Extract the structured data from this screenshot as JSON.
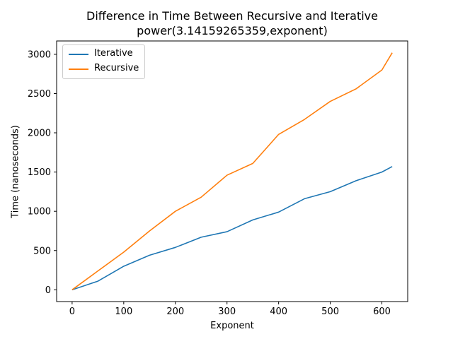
{
  "chart_data": {
    "type": "line",
    "title_lines": [
      "Difference in Time Between Recursive and Iterative",
      "power(3.14159265359,exponent)"
    ],
    "xlabel": "Exponent",
    "ylabel": "Time (nanoseconds)",
    "xlim": [
      -30,
      650
    ],
    "ylim": [
      -150,
      3170
    ],
    "xticks": [
      0,
      100,
      200,
      300,
      400,
      500,
      600
    ],
    "yticks": [
      0,
      500,
      1000,
      1500,
      2000,
      2500,
      3000
    ],
    "grid": false,
    "legend_position": "top-left",
    "x": [
      0,
      50,
      100,
      150,
      200,
      250,
      300,
      350,
      400,
      450,
      500,
      550,
      600,
      620
    ],
    "series": [
      {
        "name": "Iterative",
        "color": "#1f77b4",
        "values": [
          0,
          110,
          300,
          440,
          540,
          670,
          740,
          890,
          990,
          1160,
          1250,
          1390,
          1500,
          1570
        ]
      },
      {
        "name": "Recursive",
        "color": "#ff7f0e",
        "values": [
          0,
          240,
          480,
          750,
          1000,
          1180,
          1460,
          1610,
          1980,
          2170,
          2400,
          2560,
          2800,
          3020
        ]
      }
    ]
  }
}
